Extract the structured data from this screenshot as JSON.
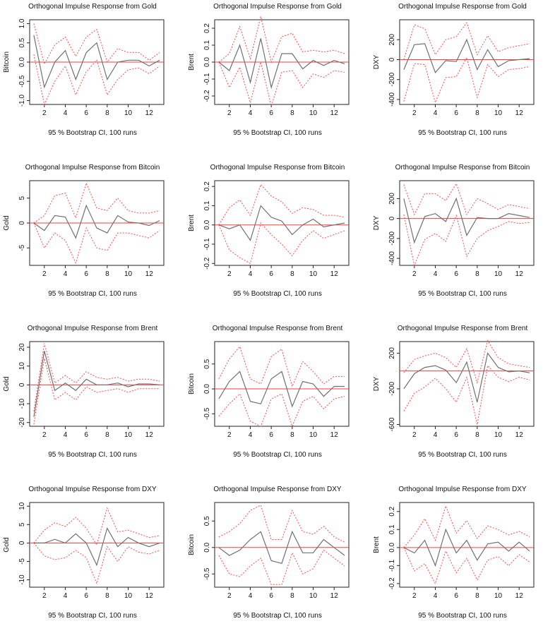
{
  "chart_data": [
    {
      "type": "line",
      "title": "Orthogonal Impulse Response from Gold",
      "xlabel": "95 % Bootstrap CI,  100 runs",
      "ylabel": "Bitcoin",
      "ylim": [
        -1.1,
        1.1
      ],
      "yticks": [
        -1.0,
        -0.5,
        0.0,
        0.5,
        1.0
      ],
      "ytick_labels": [
        "-1.0",
        "-0.5",
        "0.0",
        "0.5",
        "1.0"
      ],
      "xticks": [
        2,
        4,
        6,
        8,
        10,
        12
      ],
      "x": [
        1,
        2,
        3,
        4,
        5,
        6,
        7,
        8,
        9,
        10,
        11,
        12,
        13
      ],
      "series": [
        {
          "name": "response",
          "values": [
            0.7,
            -0.65,
            0.0,
            0.3,
            -0.45,
            0.25,
            0.5,
            -0.45,
            0.0,
            0.05,
            0.05,
            -0.1,
            0.05
          ]
        },
        {
          "name": "upper",
          "values": [
            1.0,
            -0.05,
            0.45,
            0.65,
            0.15,
            0.65,
            0.85,
            0.0,
            0.35,
            0.25,
            0.25,
            0.05,
            0.25
          ]
        },
        {
          "name": "lower",
          "values": [
            0.2,
            -1.1,
            -0.5,
            -0.1,
            -0.85,
            -0.25,
            0.05,
            -0.85,
            -0.45,
            -0.2,
            -0.15,
            -0.3,
            -0.1
          ]
        }
      ]
    },
    {
      "type": "line",
      "title": "Orthogonal Impulse Response from Gold",
      "xlabel": "95 % Bootstrap CI,  100 runs",
      "ylabel": "Brent",
      "ylim": [
        -0.25,
        0.25
      ],
      "yticks": [
        -0.2,
        -0.1,
        0.0,
        0.1,
        0.2
      ],
      "ytick_labels": [
        "-0.2",
        "-0.1",
        "0.0",
        "0.1",
        "0.2"
      ],
      "xticks": [
        2,
        4,
        6,
        8,
        10,
        12
      ],
      "x": [
        1,
        2,
        3,
        4,
        5,
        6,
        7,
        8,
        9,
        10,
        11,
        12,
        13
      ],
      "series": [
        {
          "name": "response",
          "values": [
            0.0,
            -0.05,
            0.1,
            -0.12,
            0.14,
            -0.15,
            0.05,
            0.05,
            -0.04,
            0.01,
            -0.02,
            0.01,
            -0.01
          ]
        },
        {
          "name": "upper",
          "values": [
            0.0,
            0.05,
            0.21,
            0.02,
            0.27,
            0.0,
            0.15,
            0.17,
            0.06,
            0.07,
            0.06,
            0.07,
            0.05
          ]
        },
        {
          "name": "lower",
          "values": [
            0.0,
            -0.15,
            -0.03,
            -0.24,
            0.0,
            -0.26,
            -0.06,
            -0.05,
            -0.15,
            -0.07,
            -0.09,
            -0.05,
            -0.06
          ]
        }
      ]
    },
    {
      "type": "line",
      "title": "Orthogonal Impulse Response from Gold",
      "xlabel": "95 % Bootstrap CI,  100 runs",
      "ylabel": "DXY",
      "ylim": [
        -450,
        400
      ],
      "yticks": [
        -400,
        -200,
        0,
        200
      ],
      "ytick_labels": [
        "-400",
        "-200",
        "0",
        "200"
      ],
      "xticks": [
        2,
        4,
        6,
        8,
        10,
        12
      ],
      "x": [
        1,
        2,
        3,
        4,
        5,
        6,
        7,
        8,
        9,
        10,
        11,
        12,
        13
      ],
      "series": [
        {
          "name": "response",
          "values": [
            -100,
            150,
            160,
            -130,
            -10,
            -20,
            200,
            -100,
            100,
            -70,
            -10,
            0,
            10
          ]
        },
        {
          "name": "upper",
          "values": [
            0,
            350,
            310,
            50,
            200,
            230,
            370,
            50,
            240,
            80,
            120,
            140,
            160
          ]
        },
        {
          "name": "lower",
          "values": [
            -420,
            -40,
            -50,
            -430,
            -180,
            -170,
            20,
            -380,
            -50,
            -170,
            -100,
            -90,
            -70
          ]
        }
      ]
    },
    {
      "type": "line",
      "title": "Orthogonal Impulse Response from Bitcoin",
      "xlabel": "95 % Bootstrap CI,  100 runs",
      "ylabel": "Gold",
      "ylim": [
        -8.5,
        8.5
      ],
      "yticks": [
        -5,
        0,
        5
      ],
      "ytick_labels": [
        "-5",
        "0",
        "5"
      ],
      "xticks": [
        2,
        4,
        6,
        8,
        10,
        12
      ],
      "x": [
        1,
        2,
        3,
        4,
        5,
        6,
        7,
        8,
        9,
        10,
        11,
        12,
        13
      ],
      "series": [
        {
          "name": "response",
          "values": [
            0,
            -1.5,
            1.5,
            1.2,
            -3.0,
            3.5,
            -1.0,
            -2.0,
            1.5,
            0.2,
            0.0,
            -0.5,
            0.5
          ]
        },
        {
          "name": "upper",
          "values": [
            0,
            1.5,
            5.5,
            6.0,
            1.0,
            8.0,
            3.0,
            2.5,
            5.0,
            2.5,
            2.0,
            2.0,
            2.5
          ]
        },
        {
          "name": "lower",
          "values": [
            0,
            -5.0,
            -2.0,
            -3.5,
            -8.0,
            -1.0,
            -5.0,
            -5.5,
            -2.0,
            -2.0,
            -2.5,
            -3.0,
            -1.5
          ]
        }
      ]
    },
    {
      "type": "line",
      "title": "Orthogonal Impulse Response from Bitcoin",
      "xlabel": "95 % Bootstrap CI,  100 runs",
      "ylabel": "Brent",
      "ylim": [
        -0.21,
        0.23
      ],
      "yticks": [
        -0.2,
        -0.1,
        0.0,
        0.1,
        0.2
      ],
      "ytick_labels": [
        "-0.2",
        "-0.1",
        "0.0",
        "0.1",
        "0.2"
      ],
      "xticks": [
        2,
        4,
        6,
        8,
        10,
        12
      ],
      "x": [
        1,
        2,
        3,
        4,
        5,
        6,
        7,
        8,
        9,
        10,
        11,
        12,
        13
      ],
      "series": [
        {
          "name": "response",
          "values": [
            0.0,
            -0.02,
            0.0,
            -0.08,
            0.1,
            0.04,
            0.02,
            -0.05,
            0.0,
            0.03,
            -0.01,
            0.0,
            0.01
          ]
        },
        {
          "name": "upper",
          "values": [
            0.0,
            0.09,
            0.13,
            0.05,
            0.21,
            0.15,
            0.12,
            0.06,
            0.09,
            0.08,
            0.05,
            0.05,
            0.04
          ]
        },
        {
          "name": "lower",
          "values": [
            0.0,
            -0.13,
            -0.17,
            -0.2,
            0.01,
            -0.05,
            -0.1,
            -0.16,
            -0.08,
            -0.03,
            -0.07,
            -0.05,
            -0.03
          ]
        }
      ]
    },
    {
      "type": "line",
      "title": "Orthogonal Impulse Response from Bitcoin",
      "xlabel": "95 % Bootstrap CI,  100 runs",
      "ylabel": "DXY",
      "ylim": [
        -470,
        380
      ],
      "yticks": [
        -400,
        -200,
        0,
        200
      ],
      "ytick_labels": [
        "-400",
        "-200",
        "0",
        "200"
      ],
      "xticks": [
        2,
        4,
        6,
        8,
        10,
        12
      ],
      "x": [
        1,
        2,
        3,
        4,
        5,
        6,
        7,
        8,
        9,
        10,
        11,
        12,
        13
      ],
      "series": [
        {
          "name": "response",
          "values": [
            200,
            -240,
            20,
            50,
            -30,
            200,
            -170,
            10,
            0,
            0,
            50,
            30,
            10
          ]
        },
        {
          "name": "upper",
          "values": [
            340,
            40,
            250,
            250,
            180,
            350,
            40,
            200,
            150,
            90,
            140,
            120,
            100
          ]
        },
        {
          "name": "lower",
          "values": [
            40,
            -470,
            -210,
            -150,
            -230,
            30,
            -380,
            -200,
            -120,
            -80,
            -30,
            -50,
            -40
          ]
        }
      ]
    },
    {
      "type": "line",
      "title": "Orthogonal Impulse Response from Brent",
      "xlabel": "95 % Bootstrap CI,  100 runs",
      "ylabel": "Gold",
      "ylim": [
        -22,
        23
      ],
      "yticks": [
        -20,
        -10,
        0,
        10,
        20
      ],
      "ytick_labels": [
        "-20",
        "-10",
        "0",
        "10",
        "20"
      ],
      "xticks": [
        2,
        4,
        6,
        8,
        10,
        12
      ],
      "x": [
        1,
        2,
        3,
        4,
        5,
        6,
        7,
        8,
        9,
        10,
        11,
        12,
        13
      ],
      "series": [
        {
          "name": "response",
          "values": [
            -17,
            18,
            -3,
            1,
            -3,
            3,
            0,
            0,
            1,
            -1,
            0.5,
            0.5,
            0
          ]
        },
        {
          "name": "upper",
          "values": [
            -14,
            22,
            1,
            5,
            1,
            7,
            4,
            3,
            4,
            2,
            3,
            3,
            2
          ]
        },
        {
          "name": "lower",
          "values": [
            -21,
            14,
            -8,
            -4,
            -8,
            -1,
            -4,
            -3,
            -2,
            -4,
            -2,
            -2,
            -2
          ]
        }
      ]
    },
    {
      "type": "line",
      "title": "Orthogonal Impulse Response from Brent",
      "xlabel": "95 % Bootstrap CI,  100 runs",
      "ylabel": "Bitcoin",
      "ylim": [
        -0.75,
        0.95
      ],
      "yticks": [
        -0.5,
        0.0,
        0.5
      ],
      "ytick_labels": [
        "-0.5",
        "0.0",
        "0.5"
      ],
      "xticks": [
        2,
        4,
        6,
        8,
        10,
        12
      ],
      "x": [
        1,
        2,
        3,
        4,
        5,
        6,
        7,
        8,
        9,
        10,
        11,
        12,
        13
      ],
      "series": [
        {
          "name": "response",
          "values": [
            -0.2,
            0.15,
            0.35,
            -0.25,
            -0.3,
            0.2,
            0.35,
            -0.35,
            0.15,
            0.1,
            -0.15,
            0.05,
            0.05
          ]
        },
        {
          "name": "upper",
          "values": [
            0.2,
            0.6,
            0.85,
            0.2,
            0.1,
            0.65,
            0.8,
            0.05,
            0.55,
            0.35,
            0.1,
            0.25,
            0.25
          ]
        },
        {
          "name": "lower",
          "values": [
            -0.55,
            -0.3,
            -0.1,
            -0.65,
            -0.75,
            -0.2,
            -0.1,
            -0.75,
            -0.25,
            -0.15,
            -0.4,
            -0.2,
            -0.15
          ]
        }
      ]
    },
    {
      "type": "line",
      "title": "Orthogonal Impulse Response from Brent",
      "xlabel": "95 % Bootstrap CI,  100 runs",
      "ylabel": "DXY",
      "ylim": [
        -620,
        330
      ],
      "yticks": [
        -600,
        -200,
        200
      ],
      "ytick_labels": [
        "-600",
        "-200",
        "200"
      ],
      "xticks": [
        2,
        4,
        6,
        8,
        10,
        12
      ],
      "x": [
        1,
        2,
        3,
        4,
        5,
        6,
        7,
        8,
        9,
        10,
        11,
        12,
        13
      ],
      "series": [
        {
          "name": "response",
          "values": [
            -200,
            -30,
            40,
            60,
            10,
            -130,
            100,
            -350,
            200,
            40,
            -10,
            0,
            -20
          ]
        },
        {
          "name": "upper",
          "values": [
            -20,
            130,
            170,
            200,
            150,
            40,
            250,
            -130,
            340,
            150,
            80,
            60,
            40
          ]
        },
        {
          "name": "lower",
          "values": [
            -450,
            -250,
            -180,
            -80,
            -200,
            -350,
            -70,
            -600,
            60,
            -70,
            -120,
            -70,
            -100
          ]
        }
      ]
    },
    {
      "type": "line",
      "title": "Orthogonal Impulse Response from DXY",
      "xlabel": "95 % Bootstrap CI,  100 runs",
      "ylabel": "Gold",
      "ylim": [
        -12,
        11
      ],
      "yticks": [
        -10,
        -5,
        0,
        5,
        10
      ],
      "ytick_labels": [
        "-10",
        "-5",
        "0",
        "5",
        "10"
      ],
      "xticks": [
        2,
        4,
        6,
        8,
        10,
        12
      ],
      "x": [
        1,
        2,
        3,
        4,
        5,
        6,
        7,
        8,
        9,
        10,
        11,
        12,
        13
      ],
      "series": [
        {
          "name": "response",
          "values": [
            0,
            0,
            1,
            0,
            2.5,
            0,
            -6,
            4,
            -1,
            1.5,
            0,
            -1,
            0
          ]
        },
        {
          "name": "upper",
          "values": [
            0,
            3.5,
            5.5,
            4.5,
            7,
            4,
            -0.5,
            9.5,
            3,
            3.5,
            2.5,
            1.5,
            2
          ]
        },
        {
          "name": "lower",
          "values": [
            0,
            -3.5,
            -4.5,
            -4,
            -2,
            -4,
            -11,
            -1,
            -5,
            -1,
            -2.5,
            -3,
            -2
          ]
        }
      ]
    },
    {
      "type": "line",
      "title": "Orthogonal Impulse Response from DXY",
      "xlabel": "95 % Bootstrap CI,  100 runs",
      "ylabel": "Bitcoin",
      "ylim": [
        -0.75,
        0.85
      ],
      "yticks": [
        -0.5,
        0.0,
        0.5
      ],
      "ytick_labels": [
        "-0.5",
        "0.0",
        "0.5"
      ],
      "xticks": [
        2,
        4,
        6,
        8,
        10,
        12
      ],
      "x": [
        1,
        2,
        3,
        4,
        5,
        6,
        7,
        8,
        9,
        10,
        11,
        12,
        13
      ],
      "series": [
        {
          "name": "response",
          "values": [
            0.0,
            -0.15,
            -0.05,
            0.15,
            0.3,
            -0.25,
            -0.3,
            0.3,
            -0.1,
            -0.1,
            0.15,
            0.0,
            -0.15
          ]
        },
        {
          "name": "upper",
          "values": [
            0.2,
            0.3,
            0.45,
            0.7,
            0.8,
            0.15,
            0.15,
            0.7,
            0.3,
            0.25,
            0.4,
            0.2,
            0.1
          ]
        },
        {
          "name": "lower",
          "values": [
            -0.15,
            -0.5,
            -0.55,
            -0.35,
            -0.2,
            -0.7,
            -0.7,
            -0.1,
            -0.5,
            -0.4,
            -0.05,
            -0.2,
            -0.35
          ]
        }
      ]
    },
    {
      "type": "line",
      "title": "Orthogonal Impulse Response from DXY",
      "xlabel": "95 % Bootstrap CI,  100 runs",
      "ylabel": "Brent",
      "ylim": [
        -0.22,
        0.25
      ],
      "yticks": [
        -0.2,
        -0.1,
        0.0,
        0.1,
        0.2
      ],
      "ytick_labels": [
        "-0.2",
        "-0.1",
        "0.0",
        "0.1",
        "0.2"
      ],
      "xticks": [
        2,
        4,
        6,
        8,
        10,
        12
      ],
      "x": [
        1,
        2,
        3,
        4,
        5,
        6,
        7,
        8,
        9,
        10,
        11,
        12,
        13
      ],
      "series": [
        {
          "name": "response",
          "values": [
            0.0,
            -0.03,
            0.04,
            -0.1,
            0.1,
            -0.03,
            0.04,
            -0.07,
            0.02,
            0.03,
            -0.02,
            0.03,
            -0.02
          ]
        },
        {
          "name": "upper",
          "values": [
            0.0,
            0.07,
            0.16,
            0.04,
            0.23,
            0.08,
            0.15,
            0.05,
            0.12,
            0.1,
            0.07,
            0.09,
            0.06
          ]
        },
        {
          "name": "lower",
          "values": [
            0.0,
            -0.13,
            -0.09,
            -0.2,
            -0.02,
            -0.14,
            -0.06,
            -0.18,
            -0.07,
            -0.05,
            -0.1,
            -0.04,
            -0.08
          ]
        }
      ]
    }
  ]
}
